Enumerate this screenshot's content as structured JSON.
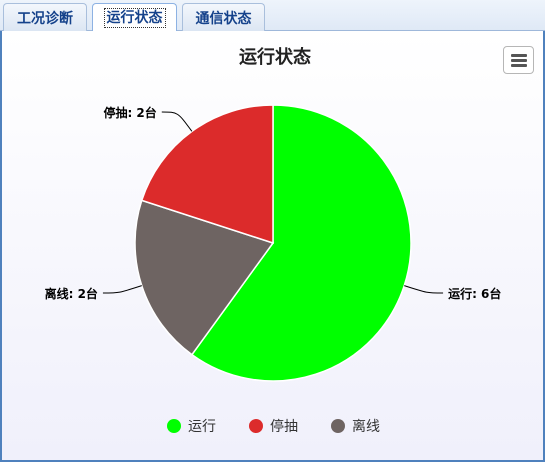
{
  "tabs": [
    {
      "label": "工况诊断",
      "active": false
    },
    {
      "label": "运行状态",
      "active": true
    },
    {
      "label": "通信状态",
      "active": false
    }
  ],
  "menu_icon": "hamburger-menu-icon",
  "chart_data": {
    "type": "pie",
    "title": "运行状态",
    "slices": [
      {
        "name": "运行",
        "value": 6,
        "label": "运行: 6台",
        "color": "#00ff00"
      },
      {
        "name": "离线",
        "value": 2,
        "label": "离线: 2台",
        "color": "#6e6462"
      },
      {
        "name": "停抽",
        "value": 2,
        "label": "停抽: 2台",
        "color": "#dc2b2b"
      }
    ],
    "legend": {
      "position": "bottom",
      "items": [
        {
          "name": "运行",
          "color": "#00ff00"
        },
        {
          "name": "停抽",
          "color": "#dc2b2b"
        },
        {
          "name": "离线",
          "color": "#6e6462"
        }
      ]
    }
  }
}
